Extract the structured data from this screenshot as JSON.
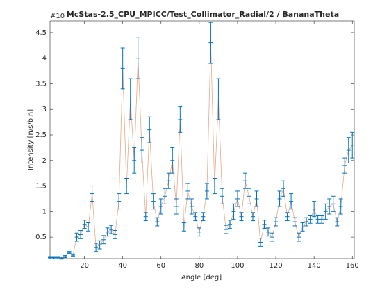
{
  "chart_data": {
    "type": "errorbar-line",
    "title": "McStas-2.5_CPU_MPICC/Test_Collimator_Radial/2 / BananaTheta",
    "x_label": "Angle [deg]",
    "y_label": "Intensity [n/s/bin]",
    "y_exponent_label": "#10",
    "line_color": "#e8a98c",
    "error_color": "#0072bd",
    "xlim": [
      2,
      161
    ],
    "ylim": [
      0.08,
      4.73
    ],
    "xticks": [
      20,
      40,
      60,
      80,
      100,
      120,
      140,
      160
    ],
    "yticks": [
      0.5,
      1,
      1.5,
      2,
      2.5,
      3,
      3.5,
      4,
      4.5
    ],
    "x": [
      2,
      4,
      6,
      8,
      10,
      12,
      14,
      16,
      18,
      20,
      22,
      24,
      26,
      28,
      30,
      32,
      34,
      36,
      38,
      40,
      42,
      44,
      46,
      48,
      50,
      52,
      54,
      56,
      58,
      60,
      62,
      64,
      66,
      68,
      70,
      72,
      74,
      76,
      78,
      80,
      82,
      84,
      86,
      88,
      90,
      92,
      94,
      96,
      98,
      100,
      102,
      104,
      106,
      108,
      110,
      112,
      114,
      116,
      118,
      120,
      122,
      124,
      126,
      128,
      130,
      132,
      134,
      136,
      138,
      140,
      142,
      144,
      146,
      148,
      150,
      152,
      154,
      156,
      158,
      160
    ],
    "values": [
      0.1,
      0.1,
      0.1,
      0.09,
      0.12,
      0.2,
      0.15,
      0.5,
      0.55,
      0.75,
      0.7,
      1.35,
      0.3,
      0.35,
      0.45,
      0.6,
      0.65,
      0.55,
      1.2,
      3.8,
      1.5,
      3.2,
      2.0,
      4.0,
      2.2,
      0.9,
      2.6,
      1.2,
      0.8,
      1.1,
      1.3,
      1.6,
      2.0,
      1.1,
      2.8,
      0.7,
      1.4,
      1.1,
      0.9,
      0.6,
      0.9,
      1.4,
      4.3,
      1.5,
      3.2,
      1.3,
      0.65,
      0.75,
      1.0,
      1.25,
      0.9,
      1.6,
      1.3,
      0.9,
      1.25,
      0.4,
      0.75,
      0.6,
      0.5,
      0.8,
      1.25,
      1.45,
      0.9,
      1.2,
      0.8,
      0.5,
      0.7,
      0.8,
      0.85,
      1.05,
      0.85,
      0.85,
      1.0,
      1.1,
      1.15,
      0.8,
      1.1,
      1.9,
      2.2,
      2.3
    ],
    "errors": [
      0.02,
      0.02,
      0.02,
      0.02,
      0.02,
      0.02,
      0.02,
      0.08,
      0.08,
      0.08,
      0.08,
      0.15,
      0.08,
      0.08,
      0.08,
      0.08,
      0.08,
      0.08,
      0.15,
      0.4,
      0.15,
      0.4,
      0.25,
      0.4,
      0.25,
      0.08,
      0.25,
      0.15,
      0.08,
      0.15,
      0.15,
      0.15,
      0.25,
      0.15,
      0.25,
      0.08,
      0.15,
      0.15,
      0.08,
      0.08,
      0.08,
      0.15,
      0.4,
      0.15,
      0.4,
      0.15,
      0.08,
      0.08,
      0.15,
      0.15,
      0.08,
      0.15,
      0.15,
      0.08,
      0.15,
      0.08,
      0.08,
      0.08,
      0.08,
      0.08,
      0.15,
      0.15,
      0.08,
      0.15,
      0.08,
      0.08,
      0.08,
      0.08,
      0.08,
      0.15,
      0.08,
      0.08,
      0.15,
      0.15,
      0.15,
      0.08,
      0.15,
      0.15,
      0.25,
      0.25
    ]
  }
}
